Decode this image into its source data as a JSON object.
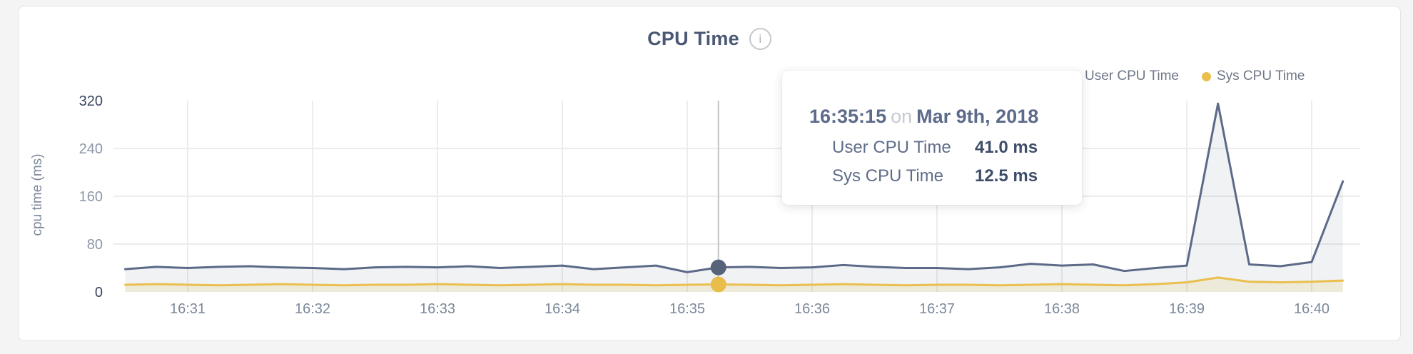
{
  "header": {
    "title": "CPU Time",
    "info_icon": "i"
  },
  "y_axis_title": "cpu time (ms)",
  "tooltip": {
    "time": "16:35:15",
    "conjunction": "on",
    "date": "Mar 9th, 2018",
    "rows": [
      {
        "label": "User CPU Time",
        "value": "41.0 ms"
      },
      {
        "label": "Sys CPU Time",
        "value": "12.5 ms"
      }
    ]
  },
  "colors": {
    "grid": "#ececec",
    "hover_line": "#c6c6c6",
    "y_tick_dark": "#3a4661",
    "y_tick_light": "#8d97a8",
    "x_tick": "#7b8799"
  },
  "chart_data": {
    "type": "area",
    "title": "CPU Time",
    "xlabel": "",
    "ylabel": "cpu time (ms)",
    "ylim": [
      0,
      320
    ],
    "yticks": [
      0,
      80,
      160,
      240,
      320
    ],
    "xticks": [
      "16:31",
      "16:32",
      "16:33",
      "16:34",
      "16:35",
      "16:36",
      "16:37",
      "16:38",
      "16:39",
      "16:40"
    ],
    "grid": "on",
    "legend_position": "top-right",
    "hover_point": "16:35:15",
    "x": [
      "16:30:30",
      "16:30:45",
      "16:31:00",
      "16:31:15",
      "16:31:30",
      "16:31:45",
      "16:32:00",
      "16:32:15",
      "16:32:30",
      "16:32:45",
      "16:33:00",
      "16:33:15",
      "16:33:30",
      "16:33:45",
      "16:34:00",
      "16:34:15",
      "16:34:30",
      "16:34:45",
      "16:35:00",
      "16:35:15",
      "16:35:30",
      "16:35:45",
      "16:36:00",
      "16:36:15",
      "16:36:30",
      "16:36:45",
      "16:37:00",
      "16:37:15",
      "16:37:30",
      "16:37:45",
      "16:38:00",
      "16:38:15",
      "16:38:30",
      "16:38:45",
      "16:39:00",
      "16:39:15",
      "16:39:30",
      "16:39:45",
      "16:40:00",
      "16:40:15"
    ],
    "series": [
      {
        "name": "User CPU Time",
        "color": "#5c6a88",
        "dot_color": "#566379",
        "fill": "rgba(92,106,136,0.09)",
        "values": [
          38,
          42,
          40,
          42,
          43,
          41,
          40,
          38,
          41,
          42,
          41,
          43,
          40,
          42,
          44,
          38,
          41,
          44,
          33,
          41,
          42,
          40,
          41,
          45,
          42,
          40,
          40,
          38,
          41,
          47,
          44,
          46,
          35,
          40,
          44,
          315,
          46,
          43,
          50,
          185
        ]
      },
      {
        "name": "Sys CPU Time",
        "color": "#eabf4e",
        "dot_color": "#e9bd49",
        "fill": "rgba(230,190,80,0.16)",
        "values": [
          12,
          13,
          12,
          11,
          12,
          13,
          12,
          11,
          12,
          12,
          13,
          12,
          11,
          12,
          13,
          12,
          12,
          11,
          12,
          12.5,
          12,
          11,
          12,
          13,
          12,
          11,
          12,
          12,
          11,
          12,
          13,
          12,
          11,
          13,
          16,
          24,
          17,
          16,
          17,
          19
        ]
      }
    ]
  }
}
